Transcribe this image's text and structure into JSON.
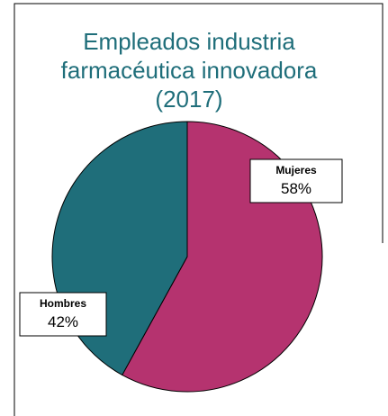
{
  "chart_data": {
    "type": "pie",
    "title": "Empleados industria farmacéutica innovadora (2017)",
    "categories": [
      "Mujeres",
      "Hombres"
    ],
    "values": [
      58,
      42
    ],
    "value_labels": [
      "58%",
      "42%"
    ],
    "colors": [
      "#b5336f",
      "#1f6e7a"
    ]
  }
}
